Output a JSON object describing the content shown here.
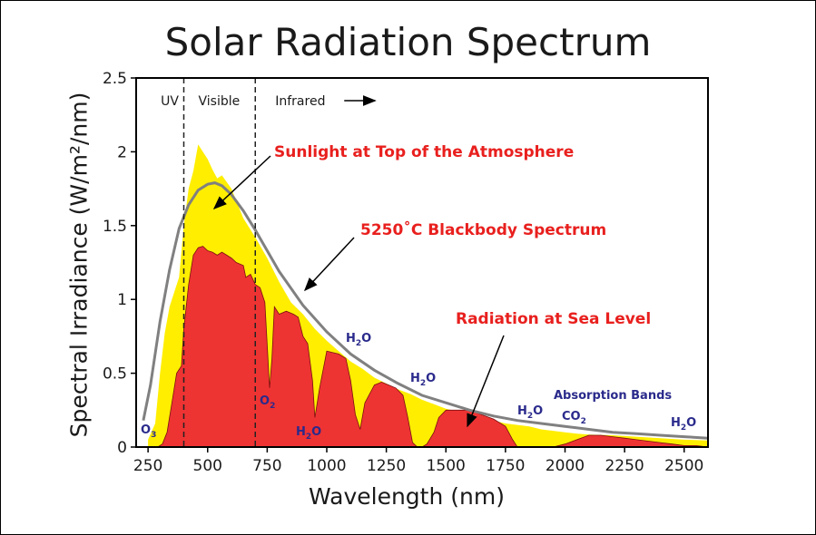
{
  "chart_data": {
    "type": "area",
    "title": "Solar Radiation Spectrum",
    "xlabel": "Wavelength (nm)",
    "ylabel": "Spectral Irradiance (W/m²/nm)",
    "xlim": [
      200,
      2600
    ],
    "ylim": [
      0,
      2.5
    ],
    "x_ticks": [
      250,
      500,
      750,
      1000,
      1250,
      1500,
      1750,
      2000,
      2250,
      2500
    ],
    "y_ticks": [
      0,
      0.5,
      1,
      1.5,
      2,
      2.5
    ],
    "y_tick_labels": [
      "0",
      "0.5",
      "1",
      "1.5",
      "2",
      "2.5"
    ],
    "regions": [
      {
        "label": "UV",
        "x_range": [
          200,
          400
        ]
      },
      {
        "label": "Visible",
        "x_range": [
          400,
          700
        ]
      },
      {
        "label": "Infrared",
        "x_range": [
          700,
          2600
        ]
      }
    ],
    "region_boundaries": [
      400,
      700
    ],
    "series": [
      {
        "name": "Sunlight at Top of the Atmosphere",
        "color": "#ffee00",
        "style": "filled-area",
        "x": [
          250,
          280,
          300,
          320,
          340,
          360,
          380,
          400,
          420,
          440,
          460,
          480,
          500,
          520,
          540,
          560,
          600,
          650,
          700,
          750,
          800,
          850,
          900,
          950,
          1000,
          1050,
          1100,
          1150,
          1200,
          1250,
          1300,
          1350,
          1400,
          1450,
          1500,
          1550,
          1600,
          1650,
          1700,
          1750,
          1800,
          1850,
          1900,
          1950,
          2000,
          2050,
          2100,
          2200,
          2300,
          2400,
          2500,
          2600
        ],
        "values": [
          0.05,
          0.16,
          0.5,
          0.77,
          0.95,
          1.05,
          1.15,
          1.5,
          1.75,
          1.87,
          2.05,
          2.0,
          1.95,
          1.88,
          1.82,
          1.84,
          1.75,
          1.55,
          1.42,
          1.28,
          1.12,
          0.98,
          0.9,
          0.8,
          0.72,
          0.65,
          0.58,
          0.53,
          0.47,
          0.43,
          0.39,
          0.36,
          0.32,
          0.29,
          0.26,
          0.24,
          0.22,
          0.2,
          0.18,
          0.16,
          0.15,
          0.14,
          0.12,
          0.11,
          0.1,
          0.09,
          0.085,
          0.08,
          0.07,
          0.06,
          0.05,
          0.045
        ]
      },
      {
        "name": "5250°C Blackbody Spectrum",
        "color": "#808080",
        "style": "line",
        "x": [
          230,
          260,
          300,
          340,
          380,
          420,
          460,
          500,
          530,
          560,
          600,
          650,
          700,
          750,
          800,
          900,
          1000,
          1100,
          1200,
          1300,
          1400,
          1500,
          1600,
          1700,
          1800,
          1900,
          2000,
          2100,
          2200,
          2300,
          2400,
          2500,
          2600
        ],
        "values": [
          0.18,
          0.42,
          0.85,
          1.2,
          1.48,
          1.64,
          1.74,
          1.78,
          1.79,
          1.77,
          1.71,
          1.6,
          1.47,
          1.33,
          1.19,
          0.96,
          0.78,
          0.63,
          0.52,
          0.43,
          0.35,
          0.3,
          0.25,
          0.21,
          0.18,
          0.16,
          0.14,
          0.12,
          0.1,
          0.09,
          0.08,
          0.07,
          0.06
        ]
      },
      {
        "name": "Radiation at Sea Level",
        "color": "#ee3333",
        "style": "filled-area",
        "x": [
          290,
          310,
          330,
          350,
          370,
          390,
          400,
          420,
          440,
          460,
          480,
          500,
          520,
          540,
          560,
          580,
          600,
          620,
          650,
          660,
          680,
          700,
          720,
          740,
          760,
          770,
          780,
          800,
          830,
          860,
          880,
          900,
          920,
          940,
          950,
          970,
          1000,
          1050,
          1080,
          1100,
          1120,
          1140,
          1160,
          1200,
          1230,
          1260,
          1290,
          1320,
          1340,
          1360,
          1380,
          1400,
          1420,
          1450,
          1470,
          1500,
          1550,
          1600,
          1650,
          1700,
          1750,
          1780,
          1800,
          1850,
          1900,
          1950,
          2000,
          2050,
          2100,
          2150,
          2200,
          2250,
          2300,
          2350,
          2400,
          2450,
          2500,
          2550,
          2600
        ],
        "values": [
          0.0,
          0.02,
          0.1,
          0.3,
          0.5,
          0.55,
          0.8,
          1.1,
          1.3,
          1.35,
          1.36,
          1.33,
          1.32,
          1.3,
          1.32,
          1.3,
          1.28,
          1.25,
          1.23,
          1.15,
          1.17,
          1.1,
          1.08,
          0.98,
          0.4,
          0.6,
          0.95,
          0.9,
          0.92,
          0.9,
          0.88,
          0.75,
          0.7,
          0.45,
          0.2,
          0.4,
          0.65,
          0.63,
          0.6,
          0.45,
          0.22,
          0.12,
          0.3,
          0.42,
          0.44,
          0.42,
          0.4,
          0.35,
          0.2,
          0.03,
          0.0,
          0.0,
          0.02,
          0.1,
          0.2,
          0.25,
          0.25,
          0.25,
          0.22,
          0.19,
          0.14,
          0.05,
          0.0,
          0.0,
          0.0,
          0.0,
          0.02,
          0.05,
          0.08,
          0.08,
          0.07,
          0.06,
          0.05,
          0.04,
          0.03,
          0.02,
          0.01,
          0.01,
          0.0
        ]
      }
    ],
    "annotations": {
      "top_atmosphere": "Sunlight at Top of the Atmosphere",
      "blackbody": "5250˚C Blackbody Spectrum",
      "sea_level": "Radiation at Sea Level",
      "absorption": "Absorption Bands"
    },
    "absorption_labels": [
      {
        "base": "O",
        "sub": "3",
        "wavelength": 250
      },
      {
        "base": "O",
        "sub": "2",
        "wavelength": 760
      },
      {
        "base": "H",
        "sub": "2",
        "suffix": "O",
        "wavelength": 940
      },
      {
        "base": "H",
        "sub": "2",
        "suffix": "O",
        "wavelength": 1130
      },
      {
        "base": "H",
        "sub": "2",
        "suffix": "O",
        "wavelength": 1400
      },
      {
        "base": "H",
        "sub": "2",
        "suffix": "O",
        "wavelength": 1850
      },
      {
        "base": "CO",
        "sub": "2",
        "wavelength": 2000
      },
      {
        "base": "H",
        "sub": "2",
        "suffix": "O",
        "wavelength": 2500
      }
    ],
    "grid": false,
    "legend": "none (inline annotations)"
  },
  "colors": {
    "sunlight": "#ffee00",
    "sea_level": "#ee3333",
    "blackbody": "#808080",
    "annotation_red": "#e8201e",
    "molecule_blue": "#2a2a8c"
  }
}
